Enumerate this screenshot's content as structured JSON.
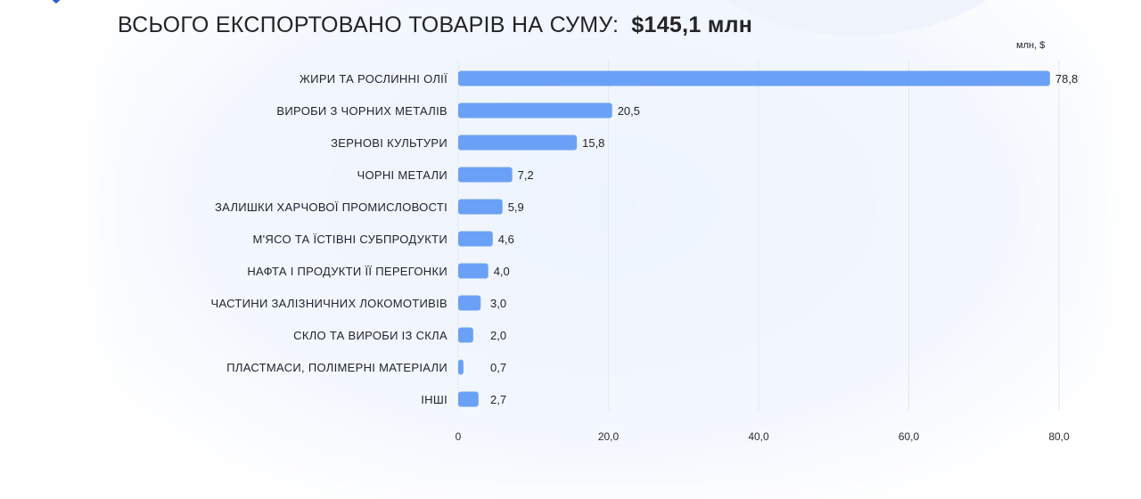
{
  "header": {
    "title": "ВСЬОГО ЕКСПОРТОВАНО ТОВАРІВ НА СУМУ:",
    "amount": "$145,1 млн"
  },
  "chart_data": {
    "type": "bar",
    "orientation": "horizontal",
    "title": "ВСЬОГО ЕКСПОРТОВАНО ТОВАРІВ НА СУМУ: $145,1 млн",
    "unit": "млн, $",
    "categories": [
      "ЖИРИ ТА РОСЛИННІ ОЛІЇ",
      "ВИРОБИ З ЧОРНИХ МЕТАЛІВ",
      "ЗЕРНОВІ КУЛЬТУРИ",
      "ЧОРНІ МЕТАЛИ",
      "ЗАЛИШКИ ХАРЧОВОЇ ПРОМИСЛОВОСТІ",
      "М'ЯСО ТА ЇСТІВНІ СУБПРОДУКТИ",
      "НАФТА І ПРОДУКТИ ЇЇ ПЕРЕГОНКИ",
      "ЧАСТИНИ ЗАЛІЗНИЧНИХ ЛОКОМОТИВІВ",
      "СКЛО ТА ВИРОБИ ІЗ СКЛА",
      "ПЛАСТМАСИ, ПОЛІМЕРНІ МАТЕРІАЛИ",
      "ІНШІ"
    ],
    "values": [
      78.8,
      20.5,
      15.8,
      7.2,
      5.9,
      4.6,
      4.0,
      3.0,
      2.0,
      0.7,
      2.7
    ],
    "value_labels": [
      "78,8",
      "20,5",
      "15,8",
      "7,2",
      "5,9",
      "4,6",
      "4,0",
      "3,0",
      "2,0",
      "0,7",
      "2,7"
    ],
    "x_ticks": [
      0,
      20,
      40,
      60,
      80
    ],
    "x_tick_labels": [
      "0",
      "20,0",
      "40,0",
      "60,0",
      "80,0"
    ],
    "xlim": [
      0,
      80
    ],
    "grid": true,
    "bar_color": "#6aa1f6",
    "grid_color": "#e4e8ee"
  }
}
